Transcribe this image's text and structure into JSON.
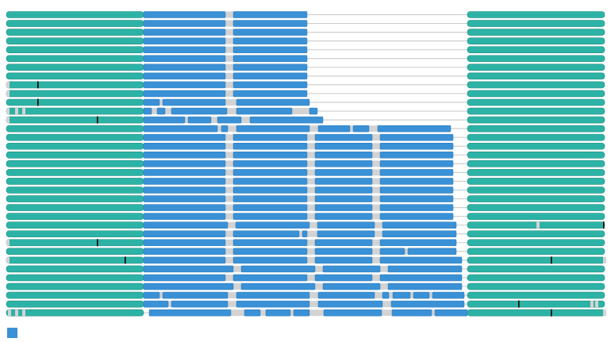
{
  "colors": {
    "background": "#ffffff",
    "flank_track": "#2db3a6",
    "flank_edge": "#1f8f86",
    "block": "#3a91d6",
    "block_edge": "#2a7bbd",
    "gap": "#d3d3d3",
    "connector": "#cfcfcf",
    "marker": "#000000",
    "legend": "#3a91d6"
  },
  "legend": {
    "icon": "square-swatch",
    "label": ""
  }
}
